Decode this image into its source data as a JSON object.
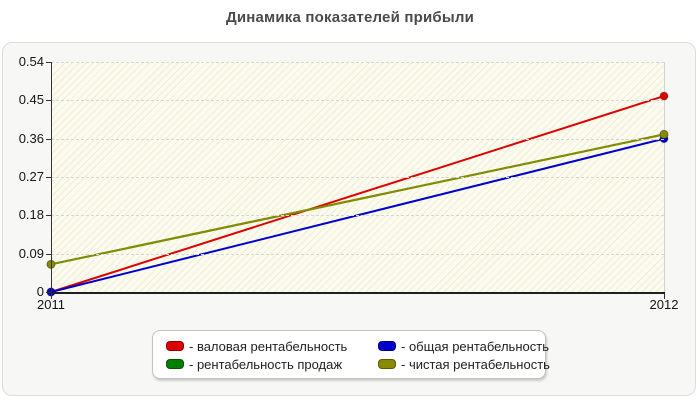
{
  "title": "Динамика показателей прибыли",
  "chart_data": {
    "type": "line",
    "categories": [
      "2011",
      "2012"
    ],
    "series": [
      {
        "name": "валовая рентабельность",
        "legend_label": "- валовая рентабельность",
        "color": "#dd0000",
        "values": [
          0,
          0.46
        ]
      },
      {
        "name": "общая рентабельность",
        "legend_label": "- общая рентабельность",
        "color": "#0000cc",
        "values": [
          0,
          0.36
        ]
      },
      {
        "name": "рентабельность продаж",
        "legend_label": "- рентабельность продаж",
        "color": "#008000",
        "values": [
          0.065,
          0.37
        ]
      },
      {
        "name": "чистая рентабельность",
        "legend_label": "- чистая рентабельность",
        "color": "#8a8a00",
        "values": [
          0.065,
          0.37
        ]
      }
    ],
    "ylim": [
      0,
      0.54
    ],
    "yticks": [
      0,
      0.09,
      0.18,
      0.27,
      0.36,
      0.45,
      0.54
    ],
    "ytick_labels": [
      "0",
      "0.09",
      "0.18",
      "0.27",
      "0.36",
      "0.45",
      "0.54"
    ],
    "grid": "horizontal-dashed",
    "plot_background": "#fcfcee",
    "legend_position": "bottom"
  }
}
